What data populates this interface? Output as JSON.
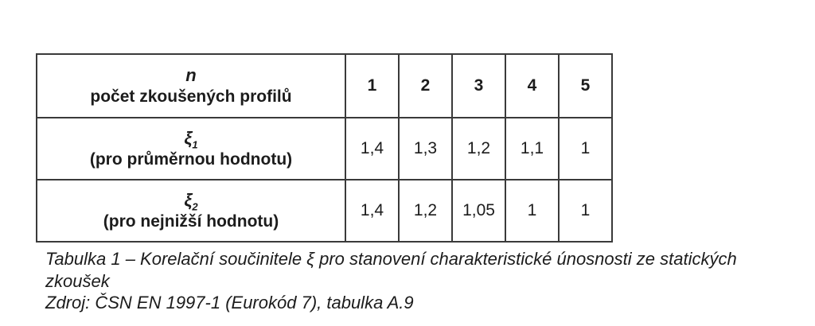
{
  "colors": {
    "background": "#ffffff",
    "table_border": "#3a3a3a",
    "text": "#1c1c1c"
  },
  "table": {
    "header": {
      "symbol": "n",
      "description": "počet zkoušených profilů",
      "columns": [
        "1",
        "2",
        "3",
        "4",
        "5"
      ]
    },
    "rows": [
      {
        "symbol": "ξ",
        "subscript": "1",
        "description": "(pro průměrnou hodnotu)",
        "values": [
          "1,4",
          "1,3",
          "1,2",
          "1,1",
          "1"
        ]
      },
      {
        "symbol": "ξ",
        "subscript": "2",
        "description": "(pro nejnižší hodnotu)",
        "values": [
          "1,4",
          "1,2",
          "1,05",
          "1",
          "1"
        ]
      }
    ]
  },
  "caption": {
    "lines": [
      "Tabulka 1 – Korelační součinitele ξ pro stanovení charakteristické únosnosti ze statických",
      "zkoušek",
      "Zdroj: ČSN EN 1997-1 (Eurokód 7), tabulka A.9"
    ]
  }
}
